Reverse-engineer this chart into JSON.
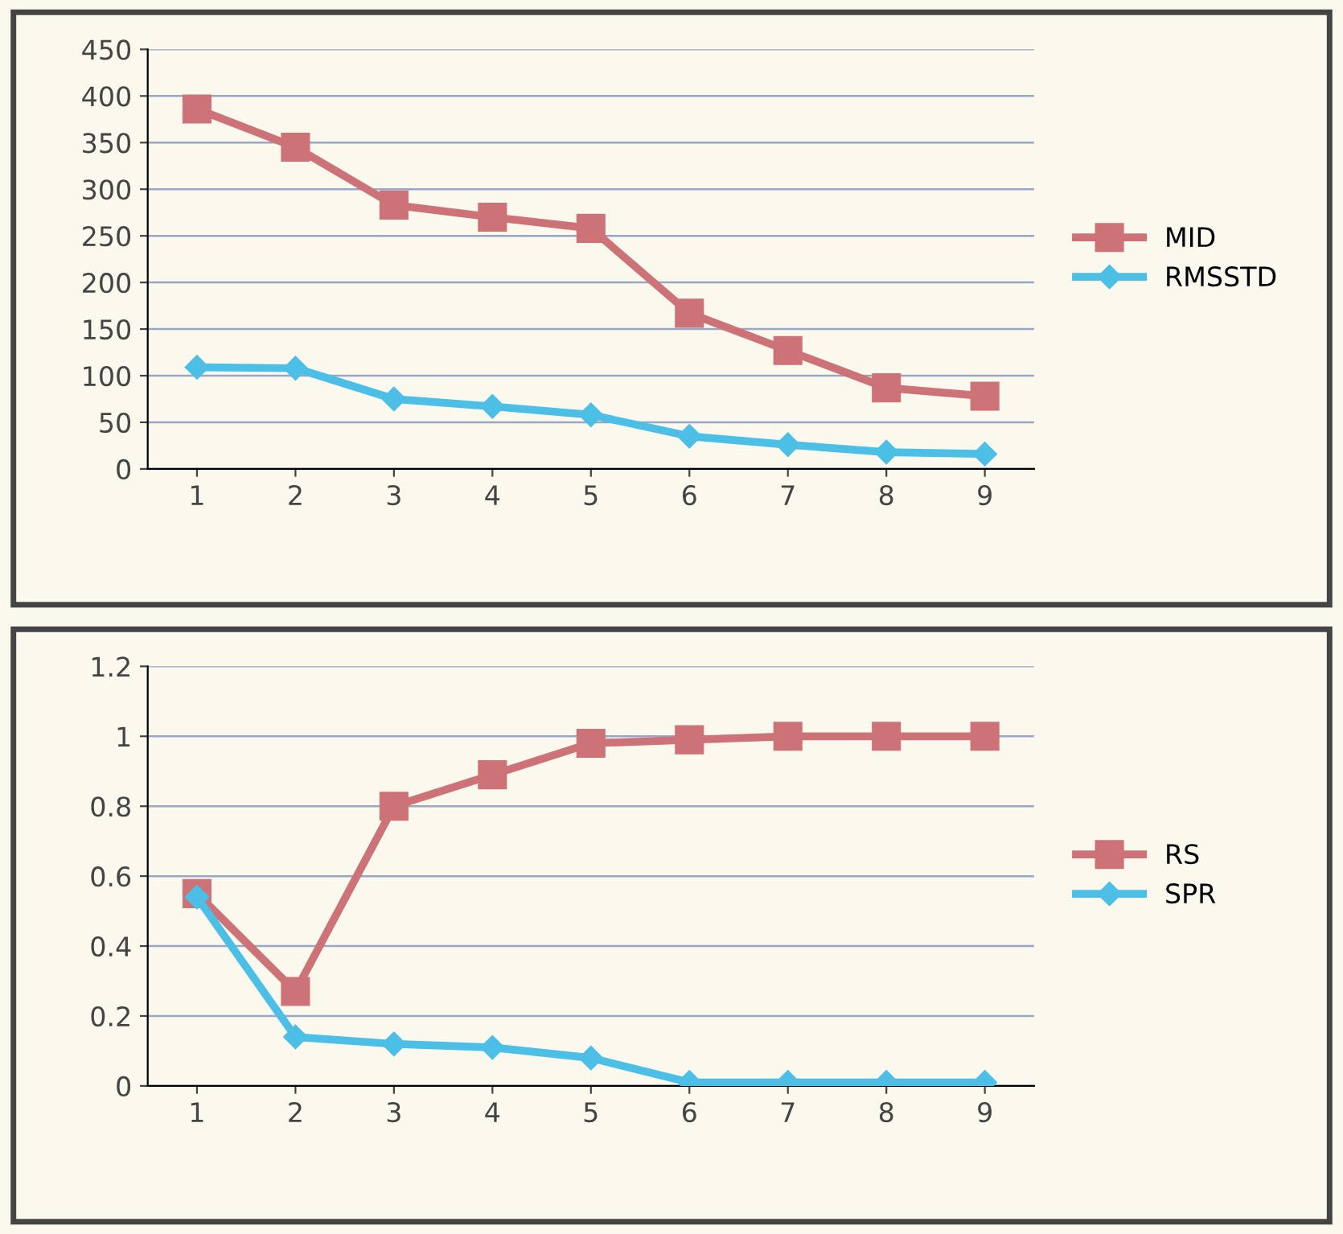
{
  "chart_data": [
    {
      "type": "line",
      "categories": [
        "1",
        "2",
        "3",
        "4",
        "5",
        "6",
        "7",
        "8",
        "9"
      ],
      "series": [
        {
          "name": "MID",
          "color": "#cd7377",
          "marker": "square",
          "values": [
            386,
            345,
            283,
            270,
            258,
            167,
            127,
            87,
            78
          ]
        },
        {
          "name": "RMSSTD",
          "color": "#4cbfe6",
          "marker": "diamond",
          "values": [
            109,
            108,
            75,
            67,
            58,
            35,
            26,
            18,
            16
          ]
        }
      ],
      "ylim": [
        0,
        450
      ],
      "yticks": [
        0,
        50,
        100,
        150,
        200,
        250,
        300,
        350,
        400,
        450
      ],
      "grid": "y",
      "legend": "right",
      "line_style": "solid"
    },
    {
      "type": "line",
      "categories": [
        "1",
        "2",
        "3",
        "4",
        "5",
        "6",
        "7",
        "8",
        "9"
      ],
      "series": [
        {
          "name": "RS",
          "color": "#cd7377",
          "marker": "square",
          "values": [
            0.55,
            0.27,
            0.8,
            0.89,
            0.98,
            0.99,
            1.0,
            1.0,
            1.0
          ]
        },
        {
          "name": "SPR",
          "color": "#4cbfe6",
          "marker": "diamond",
          "values": [
            0.54,
            0.14,
            0.12,
            0.11,
            0.08,
            0.01,
            0.01,
            0.01,
            0.01
          ]
        }
      ],
      "ylim": [
        0,
        1.2
      ],
      "yticks": [
        0,
        {
          "value": 0.2,
          "label": "0.2"
        },
        {
          "value": 0.4,
          "label": "0.4"
        },
        {
          "value": 0.6,
          "label": "0.6"
        },
        {
          "value": 0.8,
          "label": "0.8"
        },
        1,
        {
          "value": 1.2,
          "label": "1.2"
        }
      ],
      "grid": "y",
      "legend": "right",
      "line_style": "solid"
    }
  ]
}
